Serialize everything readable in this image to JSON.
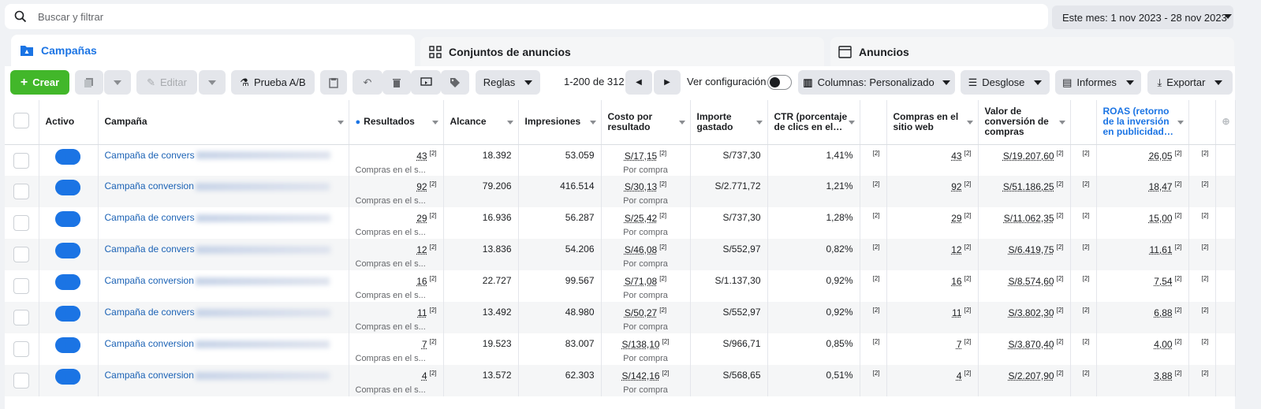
{
  "search": {
    "placeholder": "Buscar y filtrar"
  },
  "date_range": "Este mes: 1 nov 2023 - 28 nov 2023",
  "tabs": [
    "Campañas",
    "Conjuntos de anuncios",
    "Anuncios"
  ],
  "toolbar": {
    "create": "Crear",
    "edit": "Editar",
    "ab_test": "Prueba A/B",
    "rules": "Reglas",
    "pagination": "1-200 de 312",
    "view_config": "Ver configuración",
    "columns": "Columnas: Personalizado",
    "breakdown": "Desglose",
    "reports": "Informes",
    "export": "Exportar"
  },
  "headers": [
    "Activo",
    "Campaña",
    "Resultados",
    "Alcance",
    "Impresiones",
    "Costo por resultado",
    "Importe gastado",
    "CTR (porcentaje de clics en el…",
    "Compras en el sitio web",
    "Valor de conversión de compras",
    "ROAS (retorno de la inversión en publicidad…"
  ],
  "result_sub": "Compras en el s...",
  "cost_sub": "Por compra",
  "footnote": "[2]",
  "rows": [
    {
      "name": "Campaña de convers",
      "results": "43",
      "reach": "18.392",
      "impr": "53.059",
      "cpr": "S/17,15",
      "spent": "S/737,30",
      "ctr": "1,41%",
      "purch": "43",
      "value": "S/19.207,60",
      "roas": "26,05"
    },
    {
      "name": "Campaña conversion",
      "results": "92",
      "reach": "79.206",
      "impr": "416.514",
      "cpr": "S/30,13",
      "spent": "S/2.771,72",
      "ctr": "1,21%",
      "purch": "92",
      "value": "S/51.186,25",
      "roas": "18,47"
    },
    {
      "name": "Campaña de convers",
      "results": "29",
      "reach": "16.936",
      "impr": "56.287",
      "cpr": "S/25,42",
      "spent": "S/737,30",
      "ctr": "1,28%",
      "purch": "29",
      "value": "S/11.062,35",
      "roas": "15,00"
    },
    {
      "name": "Campaña de convers",
      "results": "12",
      "reach": "13.836",
      "impr": "54.206",
      "cpr": "S/46,08",
      "spent": "S/552,97",
      "ctr": "0,82%",
      "purch": "12",
      "value": "S/6.419,75",
      "roas": "11,61"
    },
    {
      "name": "Campaña conversion",
      "results": "16",
      "reach": "22.727",
      "impr": "99.567",
      "cpr": "S/71,08",
      "spent": "S/1.137,30",
      "ctr": "0,92%",
      "purch": "16",
      "value": "S/8.574,60",
      "roas": "7,54"
    },
    {
      "name": "Campaña de convers",
      "results": "11",
      "reach": "13.492",
      "impr": "48.980",
      "cpr": "S/50,27",
      "spent": "S/552,97",
      "ctr": "0,92%",
      "purch": "11",
      "value": "S/3.802,30",
      "roas": "6,88"
    },
    {
      "name": "Campaña conversion",
      "results": "7",
      "reach": "19.523",
      "impr": "83.007",
      "cpr": "S/138,10",
      "spent": "S/966,71",
      "ctr": "0,85%",
      "purch": "7",
      "value": "S/3.870,40",
      "roas": "4,00"
    },
    {
      "name": "Campaña conversion",
      "results": "4",
      "reach": "13.572",
      "impr": "62.303",
      "cpr": "S/142,16",
      "spent": "S/568,65",
      "ctr": "0,51%",
      "purch": "4",
      "value": "S/2.207,90",
      "roas": "3,88"
    }
  ]
}
